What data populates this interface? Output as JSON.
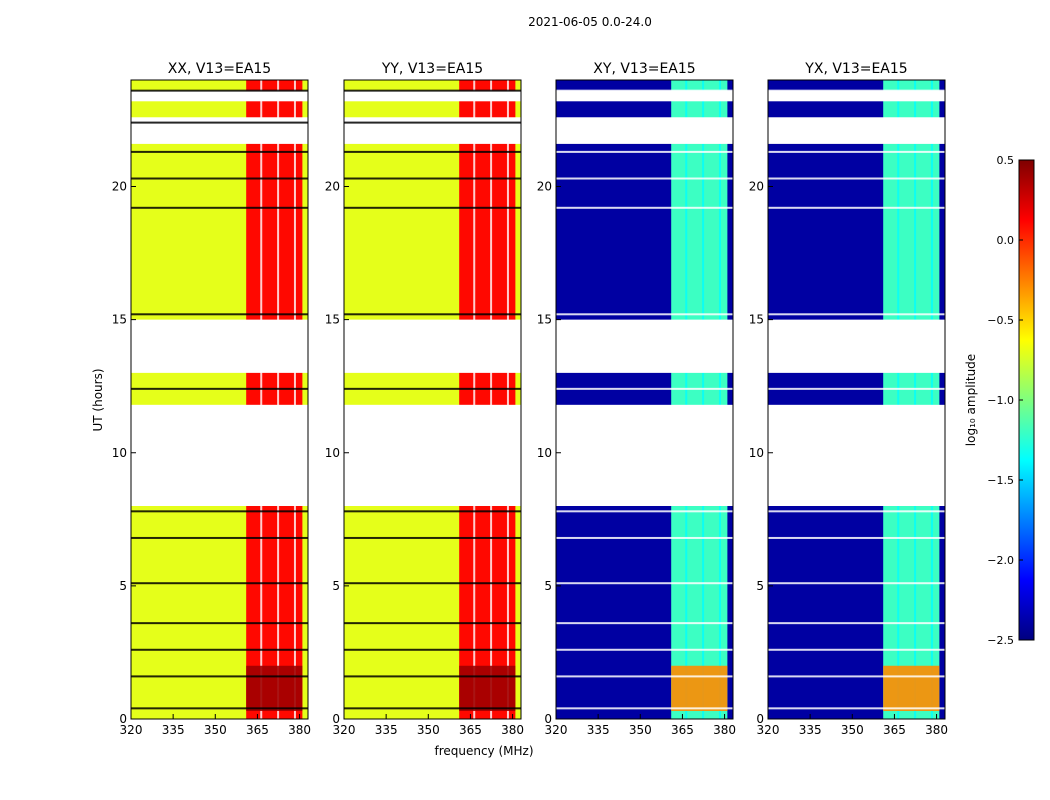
{
  "figure_title": "2021-06-05 0.0-24.0",
  "chart_data": {
    "type": "heatmap",
    "title": "2021-06-05 0.0-24.0",
    "xlabel": "frequency (MHz)",
    "ylabel": "UT (hours)",
    "xlim": [
      320,
      383
    ],
    "ylim": [
      0,
      24
    ],
    "xticks": [
      320,
      335,
      350,
      365,
      380
    ],
    "yticks": [
      0,
      5,
      10,
      15,
      20
    ],
    "gaps_hours": [
      [
        8.0,
        11.8
      ],
      [
        13.0,
        15.0
      ],
      [
        21.6,
        22.6
      ],
      [
        23.2,
        23.6
      ]
    ],
    "colorbar": {
      "label": "log₁₀ amplitude",
      "range": [
        -2.5,
        0.5
      ],
      "ticks": [
        "0.5",
        "0.0",
        "−0.5",
        "−1.0",
        "−1.5",
        "−2.0",
        "−2.5"
      ],
      "colormap": "jet"
    },
    "panels": [
      {
        "title": "XX, V13=EA15",
        "kind": "parallel",
        "background_log_amp": -0.7,
        "band_log_amp": 0.1,
        "band_mhz": [
          361,
          381
        ]
      },
      {
        "title": "YY, V13=EA15",
        "kind": "parallel",
        "background_log_amp": -0.7,
        "band_log_amp": 0.1,
        "band_mhz": [
          361,
          381
        ]
      },
      {
        "title": "XY, V13=EA15",
        "kind": "cross",
        "background_log_amp": -2.4,
        "band_log_amp": -1.2,
        "band_mhz": [
          361,
          381
        ]
      },
      {
        "title": "YX, V13=EA15",
        "kind": "cross",
        "background_log_amp": -2.4,
        "band_log_amp": -1.2,
        "band_mhz": [
          361,
          381
        ]
      }
    ]
  }
}
